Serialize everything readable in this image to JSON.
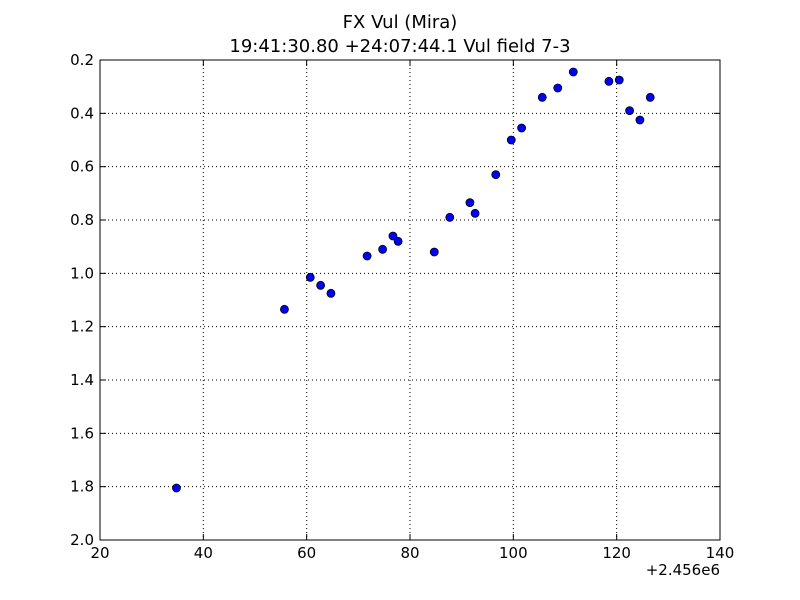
{
  "chart_data": {
    "type": "scatter",
    "title": "FX Vul (Mira)",
    "subtitle": "19:41:30.80 +24:07:44.1 Vul field 7-3",
    "xlabel": "",
    "ylabel": "",
    "x_offset_label": "+2.456e6",
    "xlim": [
      20,
      140
    ],
    "ylim": [
      2.0,
      0.2
    ],
    "y_inverted": true,
    "grid": true,
    "x_ticks": [
      "20",
      "40",
      "60",
      "80",
      "100",
      "120",
      "140"
    ],
    "y_ticks": [
      "0.2",
      "0.4",
      "0.6",
      "0.8",
      "1.0",
      "1.2",
      "1.4",
      "1.6",
      "1.8",
      "2.0"
    ],
    "marker_color": "#0000ff",
    "points": [
      {
        "x": 34.8,
        "y": 1.805
      },
      {
        "x": 55.7,
        "y": 1.135
      },
      {
        "x": 60.7,
        "y": 1.015
      },
      {
        "x": 62.7,
        "y": 1.045
      },
      {
        "x": 64.7,
        "y": 1.075
      },
      {
        "x": 71.7,
        "y": 0.935
      },
      {
        "x": 74.7,
        "y": 0.91
      },
      {
        "x": 76.7,
        "y": 0.86
      },
      {
        "x": 77.7,
        "y": 0.88
      },
      {
        "x": 84.7,
        "y": 0.92
      },
      {
        "x": 87.7,
        "y": 0.79
      },
      {
        "x": 91.6,
        "y": 0.735
      },
      {
        "x": 92.6,
        "y": 0.775
      },
      {
        "x": 96.6,
        "y": 0.63
      },
      {
        "x": 99.6,
        "y": 0.5
      },
      {
        "x": 101.6,
        "y": 0.455
      },
      {
        "x": 105.6,
        "y": 0.34
      },
      {
        "x": 108.6,
        "y": 0.305
      },
      {
        "x": 111.6,
        "y": 0.245
      },
      {
        "x": 118.5,
        "y": 0.28
      },
      {
        "x": 120.5,
        "y": 0.275
      },
      {
        "x": 122.5,
        "y": 0.39
      },
      {
        "x": 124.5,
        "y": 0.425
      },
      {
        "x": 126.5,
        "y": 0.34
      }
    ]
  }
}
